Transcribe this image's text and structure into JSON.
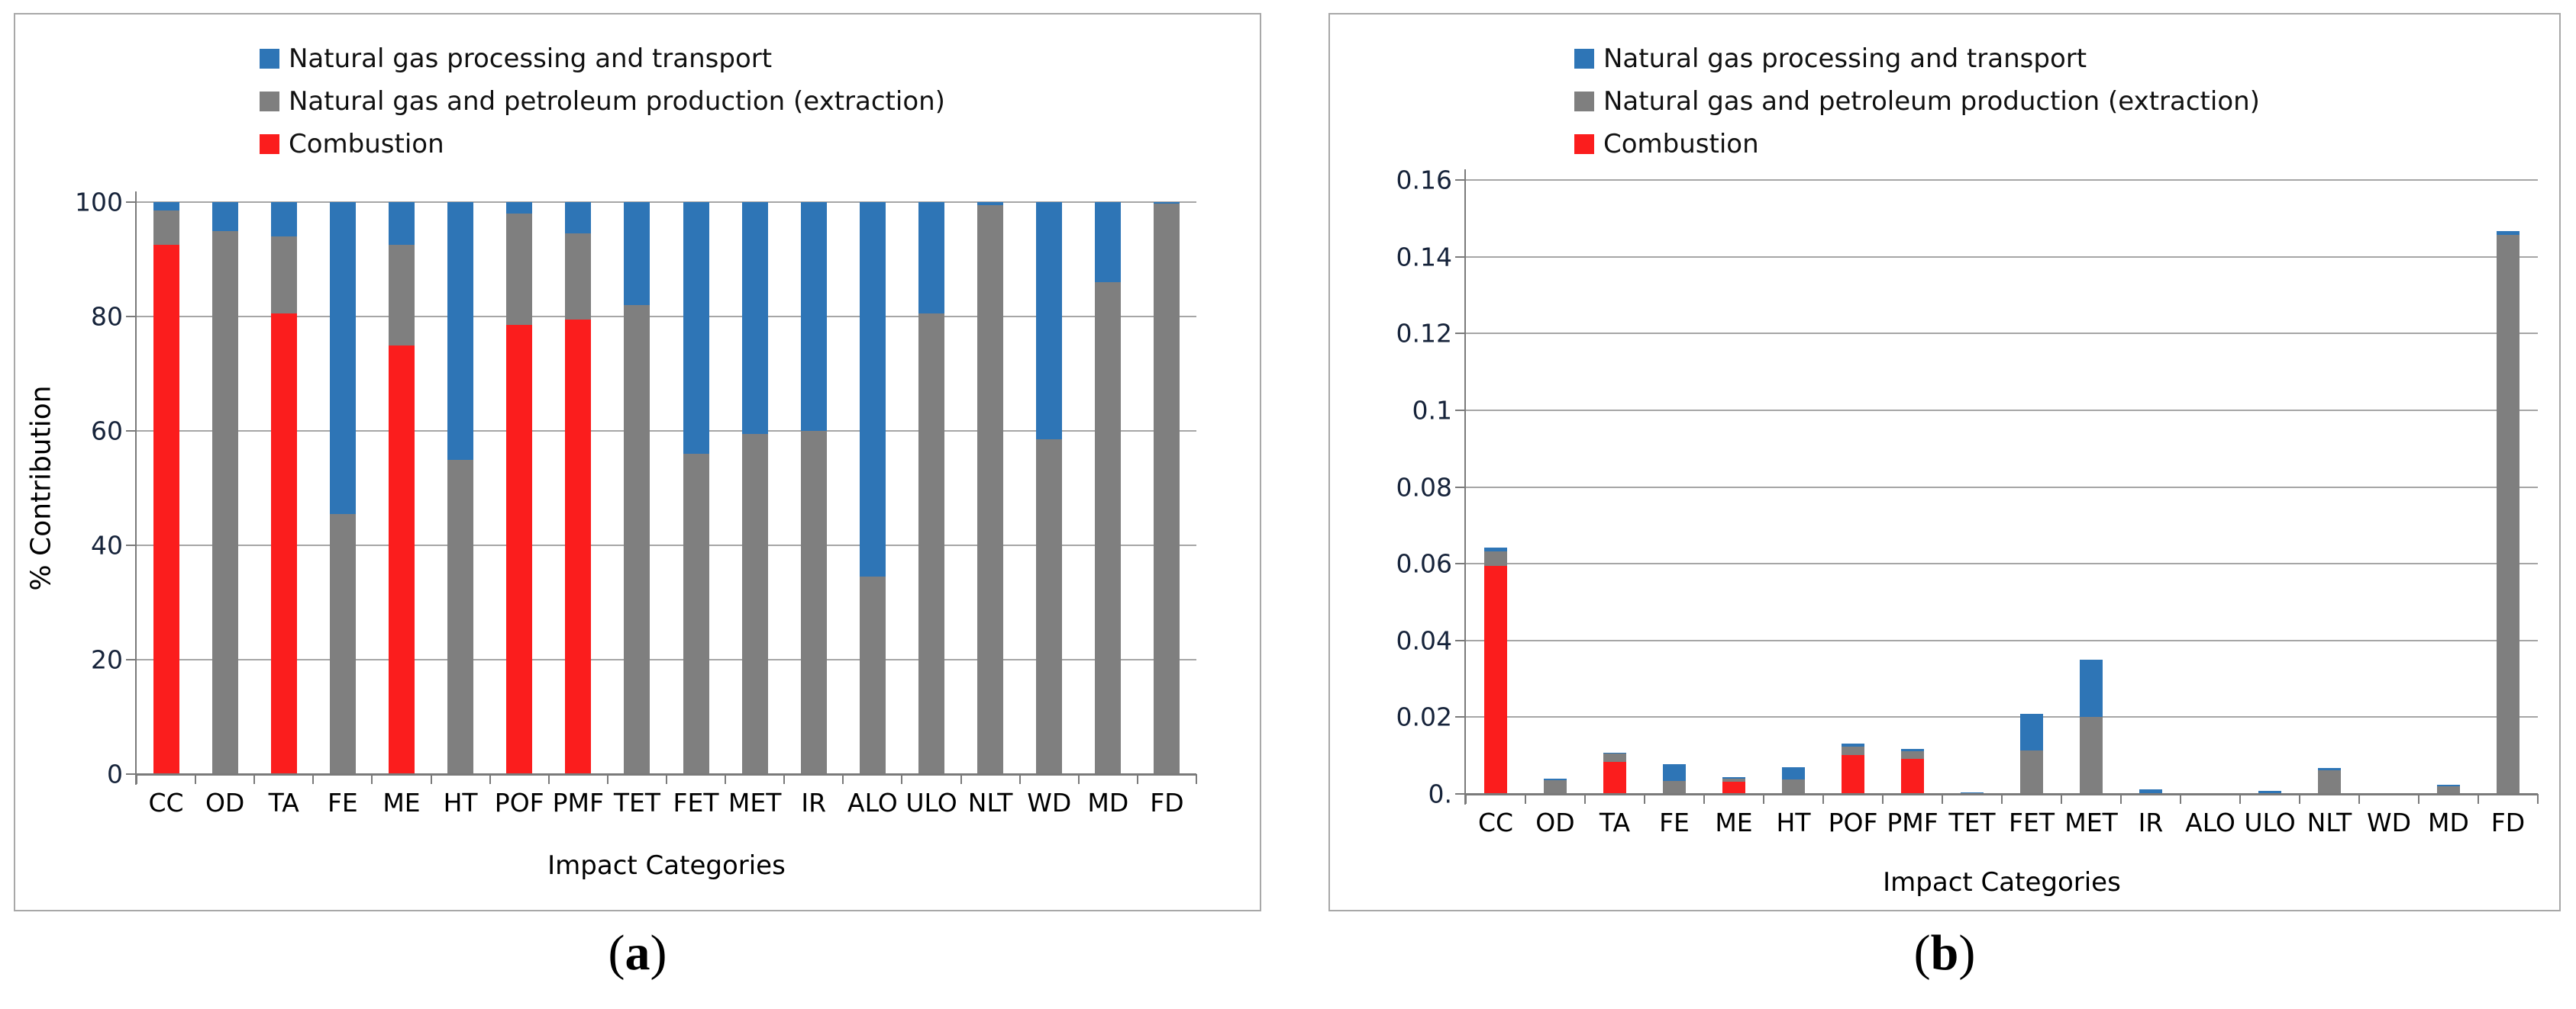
{
  "figure": {
    "panel_a": {
      "caption_open": "(",
      "caption_letter": "a",
      "caption_close": ")"
    },
    "panel_b": {
      "caption_open": "(",
      "caption_letter": "b",
      "caption_close": ")"
    }
  },
  "colors": {
    "blue": "#2E75B6",
    "gray": "#7F7F7F",
    "red": "#FB1D1D",
    "grid": "#A6A6A6",
    "axis": "#7A7A7A",
    "panel_border": "#A8A8A8"
  },
  "chart_data": [
    {
      "type": "bar",
      "stacked": true,
      "title": "",
      "xlabel": "Impact Categories",
      "ylabel": "% Contribution",
      "categories": [
        "CC",
        "OD",
        "TA",
        "FE",
        "ME",
        "HT",
        "POF",
        "PMF",
        "TET",
        "FET",
        "MET",
        "IR",
        "ALO",
        "ULO",
        "NLT",
        "WD",
        "MD",
        "FD"
      ],
      "legend": [
        {
          "label": "Natural gas processing and transport",
          "color": "#2E75B6"
        },
        {
          "label": "Natural gas and petroleum production (extraction)",
          "color": "#7F7F7F"
        },
        {
          "label": "Combustion",
          "color": "#FB1D1D"
        }
      ],
      "series": [
        {
          "name": "Combustion",
          "color": "#FB1D1D",
          "values": [
            92.5,
            0,
            80.5,
            0,
            75,
            0,
            78.5,
            79.5,
            0,
            0,
            0,
            0,
            0,
            0,
            0,
            0,
            0,
            0
          ]
        },
        {
          "name": "Natural gas and petroleum production (extraction)",
          "color": "#7F7F7F",
          "values": [
            6,
            95,
            13.5,
            45.5,
            17.5,
            55,
            19.5,
            15,
            82,
            56,
            59.5,
            60,
            34.5,
            80.5,
            99.5,
            58.5,
            86,
            99.8
          ]
        },
        {
          "name": "Natural gas processing and transport",
          "color": "#2E75B6",
          "values": [
            1.5,
            5,
            6,
            54.5,
            7.5,
            45,
            2,
            5.5,
            18,
            44,
            40.5,
            40,
            65.5,
            19.5,
            0.5,
            41.5,
            14,
            0.2
          ]
        }
      ],
      "ylim": [
        0,
        100
      ],
      "yticks": [
        {
          "label": "0",
          "value": 0
        },
        {
          "label": "20",
          "value": 20
        },
        {
          "label": "40",
          "value": 40
        },
        {
          "label": "60",
          "value": 60
        },
        {
          "label": "80",
          "value": 80
        },
        {
          "label": "100",
          "value": 100
        }
      ],
      "grid": true,
      "legend_position": "top"
    },
    {
      "type": "bar",
      "stacked": true,
      "title": "",
      "xlabel": "Impact Categories",
      "ylabel": "",
      "categories": [
        "CC",
        "OD",
        "TA",
        "FE",
        "ME",
        "HT",
        "POF",
        "PMF",
        "TET",
        "FET",
        "MET",
        "IR",
        "ALO",
        "ULO",
        "NLT",
        "WD",
        "MD",
        "FD"
      ],
      "legend": [
        {
          "label": "Natural gas processing and transport",
          "color": "#2E75B6"
        },
        {
          "label": "Natural gas and petroleum production (extraction)",
          "color": "#7F7F7F"
        },
        {
          "label": "Combustion",
          "color": "#FB1D1D"
        }
      ],
      "series": [
        {
          "name": "Combustion",
          "color": "#FB1D1D",
          "values": [
            0.0595,
            0,
            0.0084,
            0,
            0.0031,
            0,
            0.0102,
            0.0092,
            0,
            0,
            0,
            0,
            0,
            0,
            0,
            0,
            0,
            0
          ]
        },
        {
          "name": "Natural gas and petroleum production (extraction)",
          "color": "#7F7F7F",
          "values": [
            0.0038,
            0.0036,
            0.0021,
            0.0033,
            0.0009,
            0.0038,
            0.0022,
            0.0019,
            0.0001,
            0.0114,
            0.0201,
            0.0003,
            0.0001,
            0.0002,
            0.0062,
            0.0001,
            0.0019,
            0.1457
          ]
        },
        {
          "name": "Natural gas processing and transport",
          "color": "#2E75B6",
          "values": [
            0.0009,
            0.0004,
            0.0003,
            0.0044,
            0.0004,
            0.0032,
            0.0008,
            0.0006,
            0.0004,
            0.0094,
            0.0148,
            0.0008,
            0.0001,
            0.0005,
            0.0005,
            0.0001,
            0.0004,
            0.0009
          ]
        }
      ],
      "ylim": [
        0,
        0.16
      ],
      "yticks": [
        {
          "label": "0.",
          "value": 0
        },
        {
          "label": "0.02",
          "value": 0.02
        },
        {
          "label": "0.04",
          "value": 0.04
        },
        {
          "label": "0.06",
          "value": 0.06
        },
        {
          "label": "0.08",
          "value": 0.08
        },
        {
          "label": "0.1",
          "value": 0.1
        },
        {
          "label": "0.12",
          "value": 0.12
        },
        {
          "label": "0.14",
          "value": 0.14
        },
        {
          "label": "0.16",
          "value": 0.16
        }
      ],
      "grid": true,
      "legend_position": "top"
    }
  ]
}
